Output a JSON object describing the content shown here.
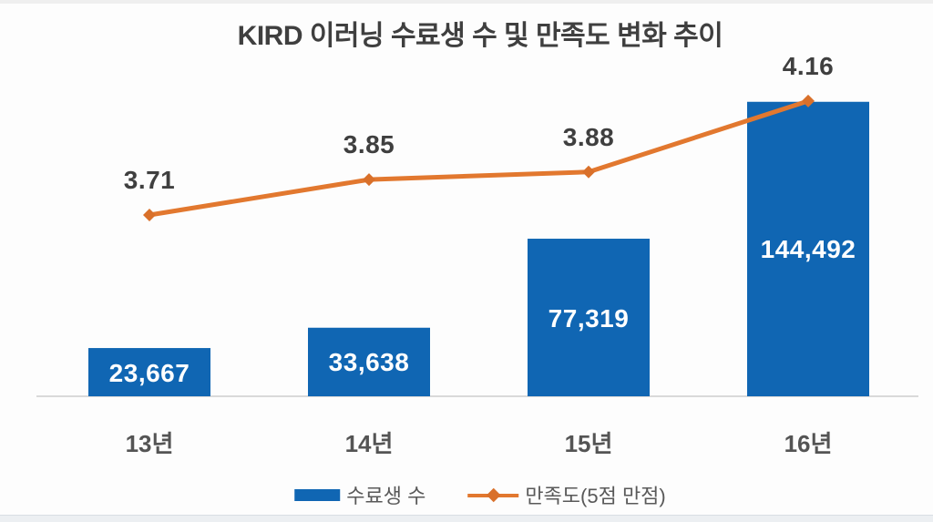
{
  "chart_data": {
    "type": "combo",
    "title": "KIRD 이러닝 수료생 수 및 만족도 변화 추이",
    "categories": [
      "13년",
      "14년",
      "15년",
      "16년"
    ],
    "series": [
      {
        "name": "수료생 수",
        "type": "bar",
        "color": "#1066b3",
        "values": [
          23667,
          33638,
          77319,
          144492
        ],
        "labels": [
          "23,667",
          "33,638",
          "77,319",
          "144,492"
        ],
        "label_color": "#ffffff"
      },
      {
        "name": "만족도(5점 만점)",
        "type": "line",
        "axis": "secondary",
        "color": "#e2782f",
        "marker_color": "#d9702a",
        "marker": "diamond",
        "values": [
          3.71,
          3.85,
          3.88,
          4.16
        ],
        "labels": [
          "3.71",
          "3.85",
          "3.88",
          "4.16"
        ],
        "value_range_hint": [
          3.5,
          4.3
        ]
      }
    ],
    "legend_position": "bottom",
    "grid": false,
    "value_axis_visible": false,
    "axis_line_color": "#d9d9d9",
    "text_color": "#3f3f3f"
  }
}
